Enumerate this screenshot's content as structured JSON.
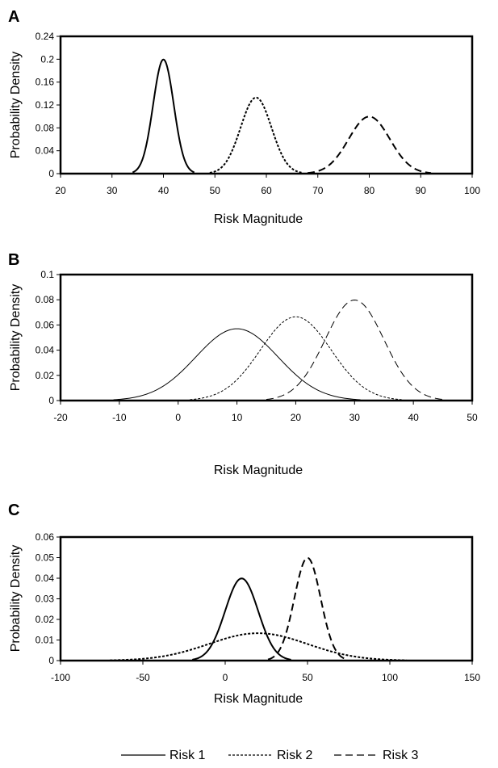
{
  "colors": {
    "line": "#000000",
    "frame": "#000000",
    "background": "#ffffff"
  },
  "legend": {
    "placement": "bottom",
    "entries": [
      {
        "label": "Risk 1",
        "style": "solid"
      },
      {
        "label": "Risk 2",
        "style": "dotted"
      },
      {
        "label": "Risk 3",
        "style": "dashed"
      }
    ]
  },
  "chart_data": [
    {
      "type": "line",
      "panel_label": "A",
      "xlabel": "Risk Magnitude",
      "ylabel": "Probability Density",
      "xlim": [
        20,
        100
      ],
      "ylim": [
        0,
        0.24
      ],
      "x_ticks": [
        20,
        30,
        40,
        50,
        60,
        70,
        80,
        90,
        100
      ],
      "y_ticks": [
        0,
        0.04,
        0.08,
        0.12,
        0.16,
        0.2,
        0.24
      ],
      "grid": false,
      "line_weight": "thick",
      "series": [
        {
          "label": "Risk 1",
          "style": "solid",
          "mean": 40,
          "sd": 2,
          "x_range": [
            34,
            46
          ]
        },
        {
          "label": "Risk 2",
          "style": "dotted",
          "mean": 58,
          "sd": 3,
          "x_range": [
            49,
            67
          ]
        },
        {
          "label": "Risk 3",
          "style": "dashed",
          "mean": 80,
          "sd": 4,
          "x_range": [
            68,
            92
          ]
        }
      ]
    },
    {
      "type": "line",
      "panel_label": "B",
      "xlabel": "Risk Magnitude",
      "ylabel": "Probability Density",
      "xlim": [
        -20,
        50
      ],
      "ylim": [
        0,
        0.1
      ],
      "x_ticks": [
        -20,
        -10,
        0,
        10,
        20,
        30,
        40,
        50
      ],
      "y_ticks": [
        0,
        0.02,
        0.04,
        0.06,
        0.08,
        0.1
      ],
      "grid": false,
      "line_weight": "thin",
      "series": [
        {
          "label": "Risk 1",
          "style": "solid",
          "mean": 10,
          "sd": 7,
          "x_range": [
            -11,
            31
          ]
        },
        {
          "label": "Risk 2",
          "style": "dotted",
          "mean": 20,
          "sd": 6,
          "x_range": [
            2,
            38
          ]
        },
        {
          "label": "Risk 3",
          "style": "dashed",
          "mean": 30,
          "sd": 5,
          "x_range": [
            15,
            45
          ]
        }
      ]
    },
    {
      "type": "line",
      "panel_label": "C",
      "xlabel": "Risk Magnitude",
      "ylabel": "Probability Density",
      "xlim": [
        -100,
        150
      ],
      "ylim": [
        0,
        0.06
      ],
      "x_ticks": [
        -100,
        -50,
        0,
        50,
        100,
        150
      ],
      "y_ticks": [
        0,
        0.01,
        0.02,
        0.03,
        0.04,
        0.05,
        0.06
      ],
      "grid": false,
      "line_weight": "thick",
      "series": [
        {
          "label": "Risk 1",
          "style": "solid",
          "mean": 10,
          "sd": 10,
          "x_range": [
            -20,
            40
          ]
        },
        {
          "label": "Risk 2",
          "style": "dotted",
          "mean": 20,
          "sd": 30,
          "x_range": [
            -70,
            110
          ]
        },
        {
          "label": "Risk 3",
          "style": "dashed",
          "mean": 50,
          "sd": 8,
          "x_range": [
            26,
            74
          ]
        }
      ]
    }
  ]
}
